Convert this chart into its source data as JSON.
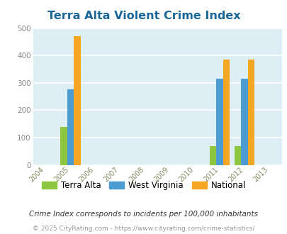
{
  "title": "Terra Alta Violent Crime Index",
  "years": [
    2004,
    2005,
    2006,
    2007,
    2008,
    2009,
    2010,
    2011,
    2012,
    2013
  ],
  "data_years": [
    2005,
    2011,
    2012
  ],
  "terra_alta": [
    140,
    70,
    70
  ],
  "west_virginia": [
    275,
    315,
    315
  ],
  "national": [
    470,
    385,
    385
  ],
  "color_terra_alta": "#8dc63f",
  "color_west_virginia": "#4b9cd3",
  "color_national": "#f5a623",
  "xlim": [
    2003.5,
    2013.5
  ],
  "ylim": [
    0,
    500
  ],
  "yticks": [
    0,
    100,
    200,
    300,
    400,
    500
  ],
  "background_color": "#deeef5",
  "grid_color": "#ffffff",
  "title_color": "#1a6699",
  "legend_labels": [
    "Terra Alta",
    "West Virginia",
    "National"
  ],
  "footnote1": "Crime Index corresponds to incidents per 100,000 inhabitants",
  "footnote2": "© 2025 CityRating.com - https://www.cityrating.com/crime-statistics/",
  "bar_width": 0.27
}
